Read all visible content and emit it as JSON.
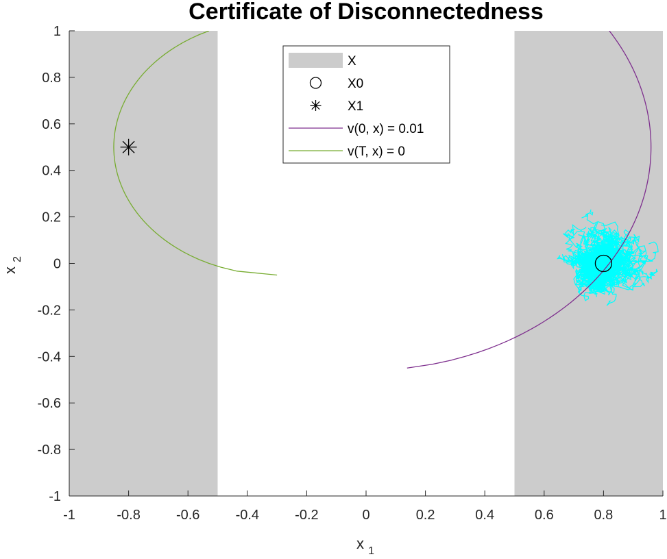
{
  "chart_data": {
    "type": "line",
    "title": "Certificate of Disconnectedness",
    "xlabel": "x",
    "xlabel_sub": "1",
    "ylabel": "x",
    "ylabel_sub": "2",
    "xlim": [
      -1,
      1
    ],
    "ylim": [
      -1,
      1
    ],
    "xticks": [
      "-1",
      "-0.8",
      "-0.6",
      "-0.4",
      "-0.2",
      "0",
      "0.2",
      "0.4",
      "0.6",
      "0.8",
      "1"
    ],
    "yticks": [
      "1",
      "0.8",
      "0.6",
      "0.4",
      "0.2",
      "0",
      "-0.2",
      "-0.4",
      "-0.6",
      "-0.8",
      "-1"
    ],
    "grid": false,
    "legend_position": "top-center",
    "regions": {
      "name": "X",
      "color": "#cccccc",
      "x_intervals": [
        [
          -1,
          -0.5
        ],
        [
          0.5,
          1
        ]
      ]
    },
    "markers": [
      {
        "name": "X0",
        "symbol": "circle",
        "x": 0.8,
        "y": 0.0
      },
      {
        "name": "X1",
        "symbol": "asterisk",
        "x": -0.8,
        "y": 0.5
      }
    ],
    "series": [
      {
        "name": "v(0, x) = 0.01",
        "color": "#7e2f8e",
        "shape": "arc",
        "center": [
          0.0,
          0.5
        ],
        "radius": 0.96,
        "side": "right"
      },
      {
        "name": "v(T, x) = 0",
        "color": "#77ac30",
        "shape": "arc",
        "center": [
          -0.3,
          0.5
        ],
        "radius": 0.55,
        "side": "left"
      }
    ],
    "trajectories": {
      "color": "#00ffff",
      "start": [
        0.8,
        0.0
      ],
      "extent_x": [
        0.5,
        1.0
      ],
      "extent_y": [
        -0.5,
        0.4
      ]
    },
    "legend": [
      {
        "label": "X",
        "kind": "patch"
      },
      {
        "label": "X0",
        "kind": "circle"
      },
      {
        "label": "X1",
        "kind": "asterisk"
      },
      {
        "label": "v(0, x) = 0.01",
        "kind": "line"
      },
      {
        "label": "v(T, x) = 0",
        "kind": "line"
      }
    ]
  }
}
